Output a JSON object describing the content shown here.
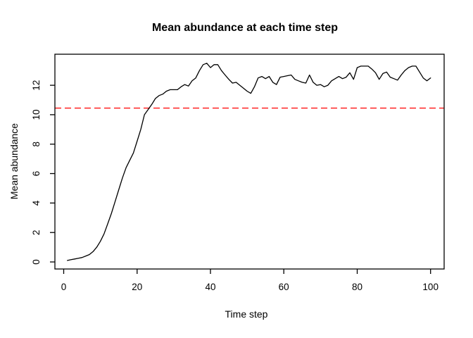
{
  "chart_data": {
    "type": "line",
    "title": "Mean abundance at each time step",
    "xlabel": "Time step",
    "ylabel": "Mean abundance",
    "x_ticks": [
      0,
      20,
      40,
      60,
      80,
      100
    ],
    "y_ticks": [
      0,
      2,
      4,
      6,
      8,
      10,
      12
    ],
    "xlim": [
      -2.4,
      103.7
    ],
    "ylim": [
      -0.48,
      14.11
    ],
    "grid": false,
    "legend": null,
    "background_color": "#FFFFFF",
    "axis_color": "#000000",
    "series": [
      {
        "name": "mean-abundance",
        "color": "#000000",
        "style": "solid",
        "x": [
          1,
          2,
          3,
          4,
          5,
          6,
          7,
          8,
          9,
          10,
          11,
          12,
          13,
          14,
          15,
          16,
          17,
          18,
          19,
          20,
          21,
          22,
          23,
          24,
          25,
          26,
          27,
          28,
          29,
          30,
          31,
          32,
          33,
          34,
          35,
          36,
          37,
          38,
          39,
          40,
          41,
          42,
          43,
          44,
          45,
          46,
          47,
          48,
          49,
          50,
          51,
          52,
          53,
          54,
          55,
          56,
          57,
          58,
          59,
          60,
          61,
          62,
          63,
          64,
          65,
          66,
          67,
          68,
          69,
          70,
          71,
          72,
          73,
          74,
          75,
          76,
          77,
          78,
          79,
          80,
          81,
          82,
          83,
          84,
          85,
          86,
          87,
          88,
          89,
          90,
          91,
          92,
          93,
          94,
          95,
          96,
          97,
          98,
          99,
          100
        ],
        "y": [
          0.1,
          0.15,
          0.2,
          0.25,
          0.3,
          0.4,
          0.5,
          0.7,
          1.0,
          1.4,
          1.9,
          2.6,
          3.3,
          4.1,
          4.9,
          5.7,
          6.4,
          6.9,
          7.4,
          8.2,
          9.0,
          10.0,
          10.35,
          10.7,
          11.1,
          11.3,
          11.4,
          11.6,
          11.7,
          11.7,
          11.7,
          11.9,
          12.05,
          11.95,
          12.3,
          12.5,
          13.0,
          13.4,
          13.5,
          13.2,
          13.4,
          13.4,
          13.0,
          12.7,
          12.4,
          12.15,
          12.2,
          12.0,
          11.8,
          11.6,
          11.45,
          11.9,
          12.5,
          12.6,
          12.45,
          12.6,
          12.2,
          12.05,
          12.55,
          12.6,
          12.65,
          12.7,
          12.4,
          12.3,
          12.2,
          12.15,
          12.7,
          12.2,
          12.0,
          12.05,
          11.9,
          12.0,
          12.3,
          12.45,
          12.6,
          12.45,
          12.55,
          12.85,
          12.4,
          13.2,
          13.3,
          13.3,
          13.3,
          13.1,
          12.85,
          12.4,
          12.8,
          12.9,
          12.55,
          12.45,
          12.35,
          12.7,
          13.0,
          13.2,
          13.3,
          13.3,
          12.9,
          12.5,
          12.3,
          12.5
        ]
      }
    ],
    "threshold_line": {
      "y": 10.45,
      "color": "#FF0000",
      "style": "dashed"
    }
  }
}
